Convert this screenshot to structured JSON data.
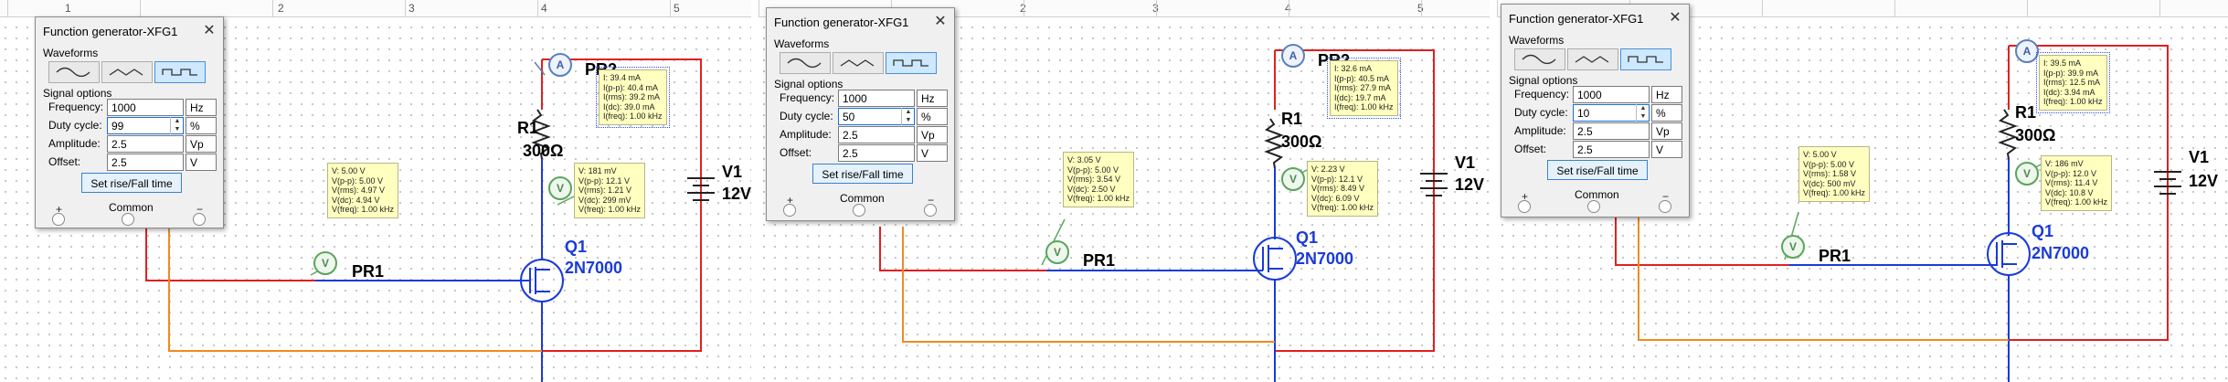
{
  "ruler": [
    "1",
    "2",
    "3",
    "4",
    "5"
  ],
  "dialog": {
    "title": "Function generator-XFG1",
    "waveforms_label": "Waveforms",
    "signal_options_label": "Signal options",
    "frequency_label": "Frequency:",
    "duty_cycle_label": "Duty cycle:",
    "amplitude_label": "Amplitude:",
    "offset_label": "Offset:",
    "frequency_value": "1000",
    "frequency_unit": "Hz",
    "duty_unit": "%",
    "amplitude_value": "2.5",
    "amplitude_unit": "Vp",
    "offset_value": "2.5",
    "offset_unit": "V",
    "set_rise_fall_button": "Set rise/Fall time",
    "common_label": "Common",
    "plus_sign": "+",
    "minus_sign": "−",
    "close_symbol": "✕"
  },
  "circuit": {
    "r_name": "R1",
    "r_value": "300Ω",
    "v_name": "V1",
    "v_value": "12V",
    "q_name": "Q1",
    "q_part": "2N7000",
    "probe_label": "PR1",
    "probe_top_label": "PR2",
    "ammeter_symbol": "A",
    "voltmeter_symbol": "V"
  },
  "panels": [
    {
      "duty_value": "99",
      "gate_probe": [
        "V: 5.00 V",
        "V(p-p): 5.00 V",
        "V(rms): 4.97 V",
        "V(dc): 4.94 V",
        "V(freq): 1.00 kHz"
      ],
      "drain_probe": [
        "V: 181 mV",
        "V(p-p): 12.1 V",
        "V(rms): 1.21 V",
        "V(dc): 299 mV",
        "V(freq): 1.00 kHz"
      ],
      "current_probe": [
        "I: 39.4 mA",
        "I(p-p): 40.4 mA",
        "I(rms): 39.2 mA",
        "I(dc): 39.0 mA",
        "I(freq): 1.00 kHz"
      ]
    },
    {
      "duty_value": "50",
      "gate_probe": [
        "V: 3.05 V",
        "V(p-p): 5.00 V",
        "V(rms): 3.54 V",
        "V(dc): 2.50 V",
        "V(freq): 1.00 kHz"
      ],
      "drain_probe": [
        "V: 2.23 V",
        "V(p-p): 12.1 V",
        "V(rms): 8.49 V",
        "V(dc): 6.09 V",
        "V(freq): 1.00 kHz"
      ],
      "current_probe": [
        "I: 32.6 mA",
        "I(p-p): 40.5 mA",
        "I(rms): 27.9 mA",
        "I(dc): 19.7 mA",
        "I(freq): 1.00 kHz"
      ]
    },
    {
      "duty_value": "10",
      "gate_probe": [
        "V: 5.00 V",
        "V(p-p): 5.00 V",
        "V(rms): 1.58 V",
        "V(dc): 500 mV",
        "V(freq): 1.00 kHz"
      ],
      "drain_probe": [
        "V: 186 mV",
        "V(p-p): 12.0 V",
        "V(rms): 11.4 V",
        "V(dc): 10.8 V",
        "V(freq): 1.00 kHz"
      ],
      "current_probe": [
        "I: 39.5 mA",
        "I(p-p): 39.9 mA",
        "I(rms): 12.5 mA",
        "I(dc): 3.94 mA",
        "I(freq): 1.00 kHz"
      ]
    }
  ]
}
